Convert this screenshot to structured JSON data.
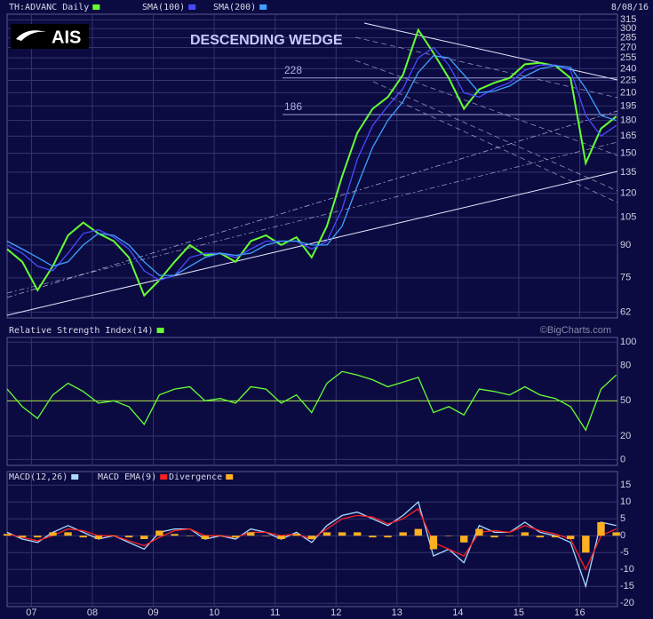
{
  "chart_data": [
    {
      "type": "line",
      "log_scale": true,
      "grid": true,
      "date": "8/08/16",
      "annotation": "DESCENDING WEDGE",
      "logo": "AIS",
      "levels": [
        228,
        186
      ],
      "x": [
        2006.6,
        2006.85,
        2007.1,
        2007.35,
        2007.6,
        2007.85,
        2008.1,
        2008.35,
        2008.6,
        2008.85,
        2009.1,
        2009.35,
        2009.6,
        2009.85,
        2010.1,
        2010.35,
        2010.6,
        2010.85,
        2011.1,
        2011.35,
        2011.6,
        2011.85,
        2012.1,
        2012.35,
        2012.6,
        2012.85,
        2013.1,
        2013.35,
        2013.6,
        2013.85,
        2014.1,
        2014.35,
        2014.6,
        2014.85,
        2015.1,
        2015.35,
        2015.6,
        2015.85,
        2016.1,
        2016.35,
        2016.6
      ],
      "xlim": [
        2006.6,
        2016.62
      ],
      "xticks": [
        {
          "value": 2007,
          "label": "07"
        },
        {
          "value": 2008,
          "label": "08"
        },
        {
          "value": 2009,
          "label": "09"
        },
        {
          "value": 2010,
          "label": "10"
        },
        {
          "value": 2011,
          "label": "11"
        },
        {
          "value": 2012,
          "label": "12"
        },
        {
          "value": 2013,
          "label": "13"
        },
        {
          "value": 2014,
          "label": "14"
        },
        {
          "value": 2015,
          "label": "15"
        },
        {
          "value": 2016,
          "label": "16"
        }
      ],
      "ylim": [
        60,
        325
      ],
      "yticks": [
        62,
        75,
        90,
        105,
        120,
        135,
        150,
        165,
        180,
        195,
        210,
        225,
        240,
        255,
        270,
        285,
        300,
        315
      ],
      "series": [
        {
          "name": "TH:ADVANC Daily",
          "color": "#66ff33",
          "values": [
            88,
            82,
            70,
            80,
            95,
            102,
            96,
            92,
            84,
            68,
            74,
            82,
            90,
            85,
            86,
            82,
            92,
            95,
            90,
            94,
            84,
            100,
            132,
            168,
            192,
            205,
            232,
            298,
            262,
            228,
            192,
            214,
            222,
            228,
            246,
            248,
            244,
            228,
            142,
            172,
            184
          ]
        },
        {
          "name": "SMA(100)",
          "color": "#4a4aff",
          "values": [
            90,
            86,
            80,
            78,
            86,
            96,
            98,
            94,
            88,
            78,
            74,
            76,
            84,
            86,
            86,
            84,
            88,
            92,
            92,
            92,
            88,
            92,
            110,
            145,
            175,
            195,
            215,
            255,
            270,
            245,
            210,
            205,
            215,
            222,
            238,
            245,
            245,
            238,
            185,
            165,
            175
          ]
        },
        {
          "name": "SMA(200)",
          "color": "#3fa0ff",
          "values": [
            92,
            88,
            84,
            80,
            82,
            90,
            96,
            95,
            90,
            82,
            76,
            76,
            80,
            84,
            86,
            85,
            86,
            90,
            92,
            92,
            90,
            90,
            100,
            125,
            155,
            180,
            200,
            235,
            258,
            255,
            232,
            210,
            212,
            218,
            230,
            240,
            244,
            242,
            215,
            185,
            180
          ]
        }
      ]
    },
    {
      "type": "line",
      "grid": true,
      "source": "©BigCharts.com",
      "hline": 50,
      "ylim": [
        -5,
        104
      ],
      "yticks": [
        0,
        20,
        50,
        80,
        100
      ],
      "series": [
        {
          "name": "Relative Strength Index(14)",
          "color": "#66ff33",
          "values": [
            60,
            45,
            35,
            55,
            65,
            58,
            48,
            50,
            45,
            30,
            55,
            60,
            62,
            50,
            52,
            48,
            62,
            60,
            48,
            55,
            40,
            65,
            75,
            72,
            68,
            62,
            66,
            70,
            40,
            45,
            38,
            60,
            58,
            55,
            62,
            55,
            52,
            45,
            25,
            60,
            72
          ]
        }
      ]
    },
    {
      "type": "line",
      "grid": true,
      "ylim": [
        -21,
        19
      ],
      "yticks": [
        15,
        10,
        5,
        0,
        -5,
        -10,
        -15,
        -20
      ],
      "series": [
        {
          "name": "MACD(12,26)",
          "color": "#a8dcff",
          "values": [
            1,
            -1,
            -2,
            1,
            3,
            1,
            -1,
            0,
            -2,
            -4,
            1,
            2,
            2,
            -1,
            0,
            -1,
            2,
            1,
            -1,
            1,
            -2,
            3,
            6,
            7,
            5,
            3,
            6,
            10,
            -6,
            -4,
            -8,
            3,
            1,
            1,
            4,
            1,
            0,
            -2,
            -15,
            4,
            3
          ]
        },
        {
          "name": "MACD EMA(9)",
          "color": "#ff2020",
          "values": [
            0.5,
            -0.5,
            -1.5,
            0,
            2,
            1.5,
            0,
            0,
            -1.5,
            -3,
            -0.5,
            1.5,
            2,
            0,
            0,
            -0.5,
            1,
            1,
            0,
            0.5,
            -1,
            2,
            5,
            6,
            5.5,
            3.5,
            5,
            8,
            -2,
            -4,
            -6,
            1,
            1.5,
            1,
            3,
            1.5,
            0.5,
            -1,
            -10,
            0,
            2
          ]
        },
        {
          "name": "Divergence",
          "type": "bar",
          "color": "#ffb020",
          "values": [
            0.5,
            -0.5,
            -0.5,
            1,
            1,
            -0.5,
            -1,
            0,
            -0.5,
            -1,
            1.5,
            0.5,
            0,
            -1,
            0,
            -0.5,
            1,
            0,
            -1,
            0.5,
            -1,
            1,
            1,
            1,
            -0.5,
            -0.5,
            1,
            2,
            -4,
            0,
            -2,
            2,
            -0.5,
            0,
            1,
            -0.5,
            -0.5,
            -1,
            -5,
            4,
            1
          ]
        }
      ]
    }
  ]
}
